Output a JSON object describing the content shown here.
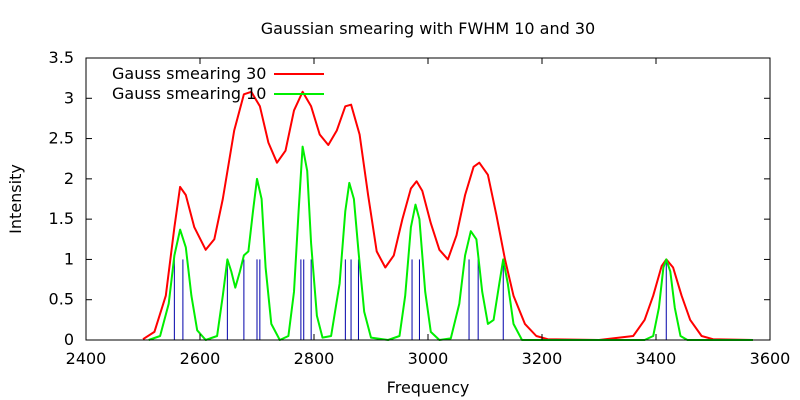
{
  "chart_data": {
    "type": "line",
    "title": "Gaussian smearing with FWHM 10 and 30",
    "xlabel": "Frequency",
    "ylabel": "Intensity",
    "xlim": [
      2400,
      3600
    ],
    "ylim": [
      0,
      3.5
    ],
    "x_ticks": [
      2400,
      2600,
      2800,
      3000,
      3200,
      3400,
      3600
    ],
    "y_ticks": [
      0,
      0.5,
      1,
      1.5,
      2,
      2.5,
      3,
      3.5
    ],
    "x_tick_labels": [
      "2400",
      "2600",
      "2800",
      "3000",
      "3200",
      "3400",
      "3600"
    ],
    "y_tick_labels": [
      "0",
      "0.5",
      "1",
      "1.5",
      "2",
      "2.5",
      "3",
      "3.5"
    ],
    "legend_position": "top-left",
    "stick_color": "#0000aa",
    "stick_frequencies": [
      2555,
      2570,
      2648,
      2677,
      2700,
      2705,
      2777,
      2782,
      2795,
      2855,
      2865,
      2878,
      2972,
      2985,
      3072,
      3088,
      3132,
      3418
    ],
    "series": [
      {
        "name": "Gauss smearing 30",
        "color": "#ff0000",
        "fwhm": 30,
        "points": [
          [
            2500,
            0.01
          ],
          [
            2520,
            0.1
          ],
          [
            2540,
            0.55
          ],
          [
            2555,
            1.4
          ],
          [
            2565,
            1.9
          ],
          [
            2575,
            1.8
          ],
          [
            2590,
            1.4
          ],
          [
            2610,
            1.12
          ],
          [
            2625,
            1.25
          ],
          [
            2640,
            1.75
          ],
          [
            2660,
            2.6
          ],
          [
            2677,
            3.05
          ],
          [
            2690,
            3.08
          ],
          [
            2705,
            2.9
          ],
          [
            2720,
            2.45
          ],
          [
            2735,
            2.2
          ],
          [
            2750,
            2.35
          ],
          [
            2765,
            2.85
          ],
          [
            2780,
            3.08
          ],
          [
            2795,
            2.9
          ],
          [
            2810,
            2.55
          ],
          [
            2825,
            2.42
          ],
          [
            2840,
            2.6
          ],
          [
            2855,
            2.9
          ],
          [
            2865,
            2.92
          ],
          [
            2880,
            2.55
          ],
          [
            2895,
            1.8
          ],
          [
            2910,
            1.1
          ],
          [
            2925,
            0.9
          ],
          [
            2940,
            1.05
          ],
          [
            2955,
            1.5
          ],
          [
            2970,
            1.88
          ],
          [
            2980,
            1.97
          ],
          [
            2990,
            1.85
          ],
          [
            3005,
            1.45
          ],
          [
            3020,
            1.12
          ],
          [
            3035,
            1.0
          ],
          [
            3050,
            1.3
          ],
          [
            3065,
            1.8
          ],
          [
            3080,
            2.15
          ],
          [
            3090,
            2.2
          ],
          [
            3105,
            2.05
          ],
          [
            3120,
            1.55
          ],
          [
            3135,
            1.0
          ],
          [
            3150,
            0.55
          ],
          [
            3170,
            0.2
          ],
          [
            3190,
            0.05
          ],
          [
            3210,
            0.01
          ],
          [
            3300,
            0.0
          ],
          [
            3360,
            0.05
          ],
          [
            3380,
            0.25
          ],
          [
            3395,
            0.55
          ],
          [
            3410,
            0.92
          ],
          [
            3418,
            1.0
          ],
          [
            3430,
            0.9
          ],
          [
            3445,
            0.55
          ],
          [
            3460,
            0.25
          ],
          [
            3480,
            0.05
          ],
          [
            3500,
            0.01
          ],
          [
            3570,
            0.0
          ]
        ]
      },
      {
        "name": "Gauss smearing 10",
        "color": "#00ee00",
        "fwhm": 10,
        "points": [
          [
            2510,
            0.0
          ],
          [
            2530,
            0.05
          ],
          [
            2545,
            0.45
          ],
          [
            2555,
            1.05
          ],
          [
            2565,
            1.37
          ],
          [
            2575,
            1.15
          ],
          [
            2585,
            0.55
          ],
          [
            2595,
            0.12
          ],
          [
            2610,
            0.0
          ],
          [
            2630,
            0.05
          ],
          [
            2640,
            0.55
          ],
          [
            2648,
            1.0
          ],
          [
            2655,
            0.85
          ],
          [
            2662,
            0.65
          ],
          [
            2670,
            0.85
          ],
          [
            2677,
            1.05
          ],
          [
            2685,
            1.1
          ],
          [
            2693,
            1.6
          ],
          [
            2700,
            2.0
          ],
          [
            2708,
            1.75
          ],
          [
            2715,
            0.9
          ],
          [
            2725,
            0.2
          ],
          [
            2740,
            0.0
          ],
          [
            2755,
            0.05
          ],
          [
            2765,
            0.6
          ],
          [
            2773,
            1.6
          ],
          [
            2780,
            2.4
          ],
          [
            2788,
            2.1
          ],
          [
            2795,
            1.2
          ],
          [
            2805,
            0.3
          ],
          [
            2815,
            0.03
          ],
          [
            2830,
            0.05
          ],
          [
            2845,
            0.7
          ],
          [
            2855,
            1.6
          ],
          [
            2862,
            1.95
          ],
          [
            2870,
            1.75
          ],
          [
            2878,
            1.1
          ],
          [
            2888,
            0.35
          ],
          [
            2900,
            0.03
          ],
          [
            2930,
            0.0
          ],
          [
            2950,
            0.05
          ],
          [
            2960,
            0.55
          ],
          [
            2970,
            1.4
          ],
          [
            2978,
            1.68
          ],
          [
            2985,
            1.5
          ],
          [
            2995,
            0.6
          ],
          [
            3005,
            0.1
          ],
          [
            3020,
            0.0
          ],
          [
            3040,
            0.02
          ],
          [
            3055,
            0.45
          ],
          [
            3065,
            1.05
          ],
          [
            3075,
            1.35
          ],
          [
            3085,
            1.25
          ],
          [
            3095,
            0.6
          ],
          [
            3105,
            0.2
          ],
          [
            3115,
            0.25
          ],
          [
            3125,
            0.7
          ],
          [
            3132,
            1.0
          ],
          [
            3140,
            0.7
          ],
          [
            3150,
            0.2
          ],
          [
            3165,
            0.0
          ],
          [
            3380,
            0.0
          ],
          [
            3395,
            0.05
          ],
          [
            3405,
            0.4
          ],
          [
            3413,
            0.9
          ],
          [
            3418,
            1.0
          ],
          [
            3425,
            0.85
          ],
          [
            3433,
            0.4
          ],
          [
            3443,
            0.05
          ],
          [
            3455,
            0.0
          ],
          [
            3570,
            0.0
          ]
        ]
      }
    ]
  }
}
